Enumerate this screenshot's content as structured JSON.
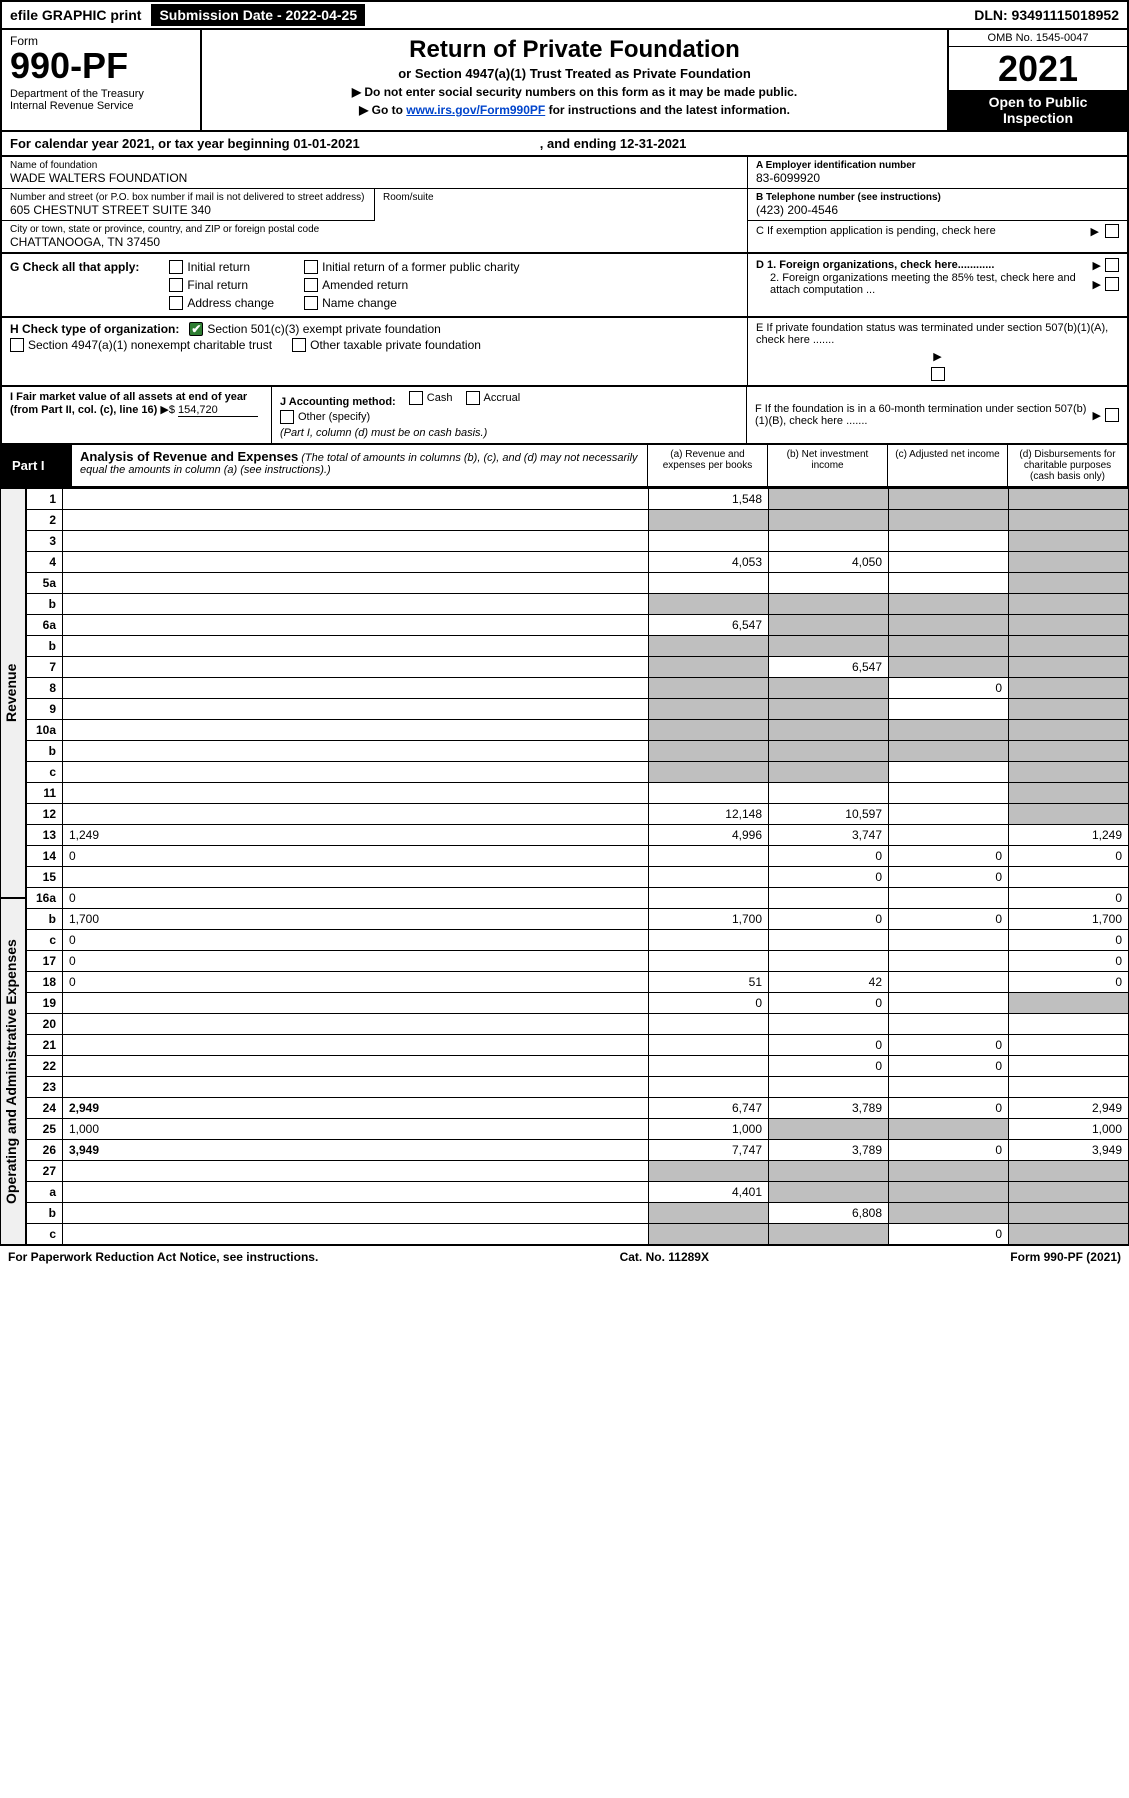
{
  "top_bar": {
    "efile": "efile GRAPHIC print",
    "submission_label": "Submission Date - 2022-04-25",
    "dln": "DLN: 93491115018952"
  },
  "header": {
    "form_word": "Form",
    "form_number": "990-PF",
    "dept": "Department of the Treasury\nInternal Revenue Service",
    "title": "Return of Private Foundation",
    "subtitle": "or Section 4947(a)(1) Trust Treated as Private Foundation",
    "note1": "▶ Do not enter social security numbers on this form as it may be made public.",
    "note2_pre": "▶ Go to ",
    "note2_link": "www.irs.gov/Form990PF",
    "note2_post": " for instructions and the latest information.",
    "omb": "OMB No. 1545-0047",
    "year": "2021",
    "inspection": "Open to Public Inspection"
  },
  "cal_year": {
    "left": "For calendar year 2021, or tax year beginning 01-01-2021",
    "right": ", and ending 12-31-2021"
  },
  "info": {
    "name_lbl": "Name of foundation",
    "name_val": "WADE WALTERS FOUNDATION",
    "addr_lbl": "Number and street (or P.O. box number if mail is not delivered to street address)",
    "addr_val": "605 CHESTNUT STREET SUITE 340",
    "room_lbl": "Room/suite",
    "city_lbl": "City or town, state or province, country, and ZIP or foreign postal code",
    "city_val": "CHATTANOOGA, TN  37450",
    "ein_lbl": "A Employer identification number",
    "ein_val": "83-6099920",
    "phone_lbl": "B Telephone number (see instructions)",
    "phone_val": "(423) 200-4546",
    "c_lbl": "C If exemption application is pending, check here",
    "d1": "D 1. Foreign organizations, check here............",
    "d2": "2. Foreign organizations meeting the 85% test, check here and attach computation ...",
    "e_lbl": "E  If private foundation status was terminated under section 507(b)(1)(A), check here .......",
    "f_lbl": "F  If the foundation is in a 60-month termination under section 507(b)(1)(B), check here ......."
  },
  "g": {
    "label": "G Check all that apply:",
    "opts": [
      "Initial return",
      "Final return",
      "Address change",
      "Initial return of a former public charity",
      "Amended return",
      "Name change"
    ]
  },
  "h": {
    "label": "H Check type of organization:",
    "opt1": "Section 501(c)(3) exempt private foundation",
    "opt2": "Section 4947(a)(1) nonexempt charitable trust",
    "opt3": "Other taxable private foundation"
  },
  "i": {
    "label": "I Fair market value of all assets at end of year (from Part II, col. (c), line 16)",
    "amount": "154,720"
  },
  "j": {
    "label": "J Accounting method:",
    "cash": "Cash",
    "accrual": "Accrual",
    "other": "Other (specify)",
    "note": "(Part I, column (d) must be on cash basis.)"
  },
  "part1": {
    "label": "Part I",
    "title": "Analysis of Revenue and Expenses",
    "title_note": "(The total of amounts in columns (b), (c), and (d) may not necessarily equal the amounts in column (a) (see instructions).)",
    "col_a": "(a)   Revenue and expenses per books",
    "col_b": "(b)   Net investment income",
    "col_c": "(c)   Adjusted net income",
    "col_d": "(d)  Disbursements for charitable purposes (cash basis only)"
  },
  "side_labels": {
    "revenue": "Revenue",
    "expenses": "Operating and Administrative Expenses"
  },
  "lines": [
    {
      "n": "1",
      "d": "",
      "a": "1,548",
      "b": "",
      "c": "",
      "shade_b": true,
      "shade_c": true,
      "shade_d": true
    },
    {
      "n": "2",
      "d": "",
      "a": "",
      "b": "",
      "c": "",
      "shade_a": true,
      "shade_b": true,
      "shade_c": true,
      "shade_d": true
    },
    {
      "n": "3",
      "d": "",
      "a": "",
      "b": "",
      "c": "",
      "shade_d": true
    },
    {
      "n": "4",
      "d": "",
      "a": "4,053",
      "b": "4,050",
      "c": "",
      "shade_d": true
    },
    {
      "n": "5a",
      "d": "",
      "a": "",
      "b": "",
      "c": "",
      "shade_d": true
    },
    {
      "n": "b",
      "d": "",
      "a": "",
      "b": "",
      "c": "",
      "shade_a": true,
      "shade_b": true,
      "shade_c": true,
      "shade_d": true
    },
    {
      "n": "6a",
      "d": "",
      "a": "6,547",
      "b": "",
      "c": "",
      "shade_b": true,
      "shade_c": true,
      "shade_d": true
    },
    {
      "n": "b",
      "d": "",
      "a": "",
      "b": "",
      "c": "",
      "shade_a": true,
      "shade_b": true,
      "shade_c": true,
      "shade_d": true
    },
    {
      "n": "7",
      "d": "",
      "a": "",
      "b": "6,547",
      "c": "",
      "shade_a": true,
      "shade_c": true,
      "shade_d": true
    },
    {
      "n": "8",
      "d": "",
      "a": "",
      "b": "",
      "c": "0",
      "shade_a": true,
      "shade_b": true,
      "shade_d": true
    },
    {
      "n": "9",
      "d": "",
      "a": "",
      "b": "",
      "c": "",
      "shade_a": true,
      "shade_b": true,
      "shade_d": true
    },
    {
      "n": "10a",
      "d": "",
      "a": "",
      "b": "",
      "c": "",
      "shade_a": true,
      "shade_b": true,
      "shade_c": true,
      "shade_d": true
    },
    {
      "n": "b",
      "d": "",
      "a": "",
      "b": "",
      "c": "",
      "shade_a": true,
      "shade_b": true,
      "shade_c": true,
      "shade_d": true
    },
    {
      "n": "c",
      "d": "",
      "a": "",
      "b": "",
      "c": "",
      "shade_a": true,
      "shade_b": true,
      "shade_d": true
    },
    {
      "n": "11",
      "d": "",
      "a": "",
      "b": "",
      "c": "",
      "shade_d": true
    },
    {
      "n": "12",
      "d": "",
      "a": "12,148",
      "b": "10,597",
      "c": "",
      "shade_d": true,
      "bold": true
    },
    {
      "n": "13",
      "d": "1,249",
      "a": "4,996",
      "b": "3,747",
      "c": ""
    },
    {
      "n": "14",
      "d": "0",
      "a": "",
      "b": "0",
      "c": "0"
    },
    {
      "n": "15",
      "d": "",
      "a": "",
      "b": "0",
      "c": "0"
    },
    {
      "n": "16a",
      "d": "0",
      "a": "",
      "b": "",
      "c": ""
    },
    {
      "n": "b",
      "d": "1,700",
      "a": "1,700",
      "b": "0",
      "c": "0"
    },
    {
      "n": "c",
      "d": "0",
      "a": "",
      "b": "",
      "c": ""
    },
    {
      "n": "17",
      "d": "0",
      "a": "",
      "b": "",
      "c": ""
    },
    {
      "n": "18",
      "d": "0",
      "a": "51",
      "b": "42",
      "c": ""
    },
    {
      "n": "19",
      "d": "",
      "a": "0",
      "b": "0",
      "c": "",
      "shade_d": true
    },
    {
      "n": "20",
      "d": "",
      "a": "",
      "b": "",
      "c": ""
    },
    {
      "n": "21",
      "d": "",
      "a": "",
      "b": "0",
      "c": "0"
    },
    {
      "n": "22",
      "d": "",
      "a": "",
      "b": "0",
      "c": "0"
    },
    {
      "n": "23",
      "d": "",
      "a": "",
      "b": "",
      "c": ""
    },
    {
      "n": "24",
      "d": "2,949",
      "a": "6,747",
      "b": "3,789",
      "c": "0",
      "bold": true
    },
    {
      "n": "25",
      "d": "1,000",
      "a": "1,000",
      "b": "",
      "c": "",
      "shade_b": true,
      "shade_c": true
    },
    {
      "n": "26",
      "d": "3,949",
      "a": "7,747",
      "b": "3,789",
      "c": "0",
      "bold": true
    },
    {
      "n": "27",
      "d": "",
      "a": "",
      "b": "",
      "c": "",
      "shade_a": true,
      "shade_b": true,
      "shade_c": true,
      "shade_d": true
    },
    {
      "n": "a",
      "d": "",
      "a": "4,401",
      "b": "",
      "c": "",
      "shade_b": true,
      "shade_c": true,
      "shade_d": true,
      "bold": true
    },
    {
      "n": "b",
      "d": "",
      "a": "",
      "b": "6,808",
      "c": "",
      "shade_a": true,
      "shade_c": true,
      "shade_d": true,
      "bold": true
    },
    {
      "n": "c",
      "d": "",
      "a": "",
      "b": "",
      "c": "0",
      "shade_a": true,
      "shade_b": true,
      "shade_d": true,
      "bold": true
    }
  ],
  "footer": {
    "left": "For Paperwork Reduction Act Notice, see instructions.",
    "center": "Cat. No. 11289X",
    "right": "Form 990-PF (2021)"
  },
  "colors": {
    "black": "#000000",
    "white": "#ffffff",
    "shade": "#bfbfbf",
    "link": "#0044cc",
    "check_green": "#2e7d32"
  }
}
